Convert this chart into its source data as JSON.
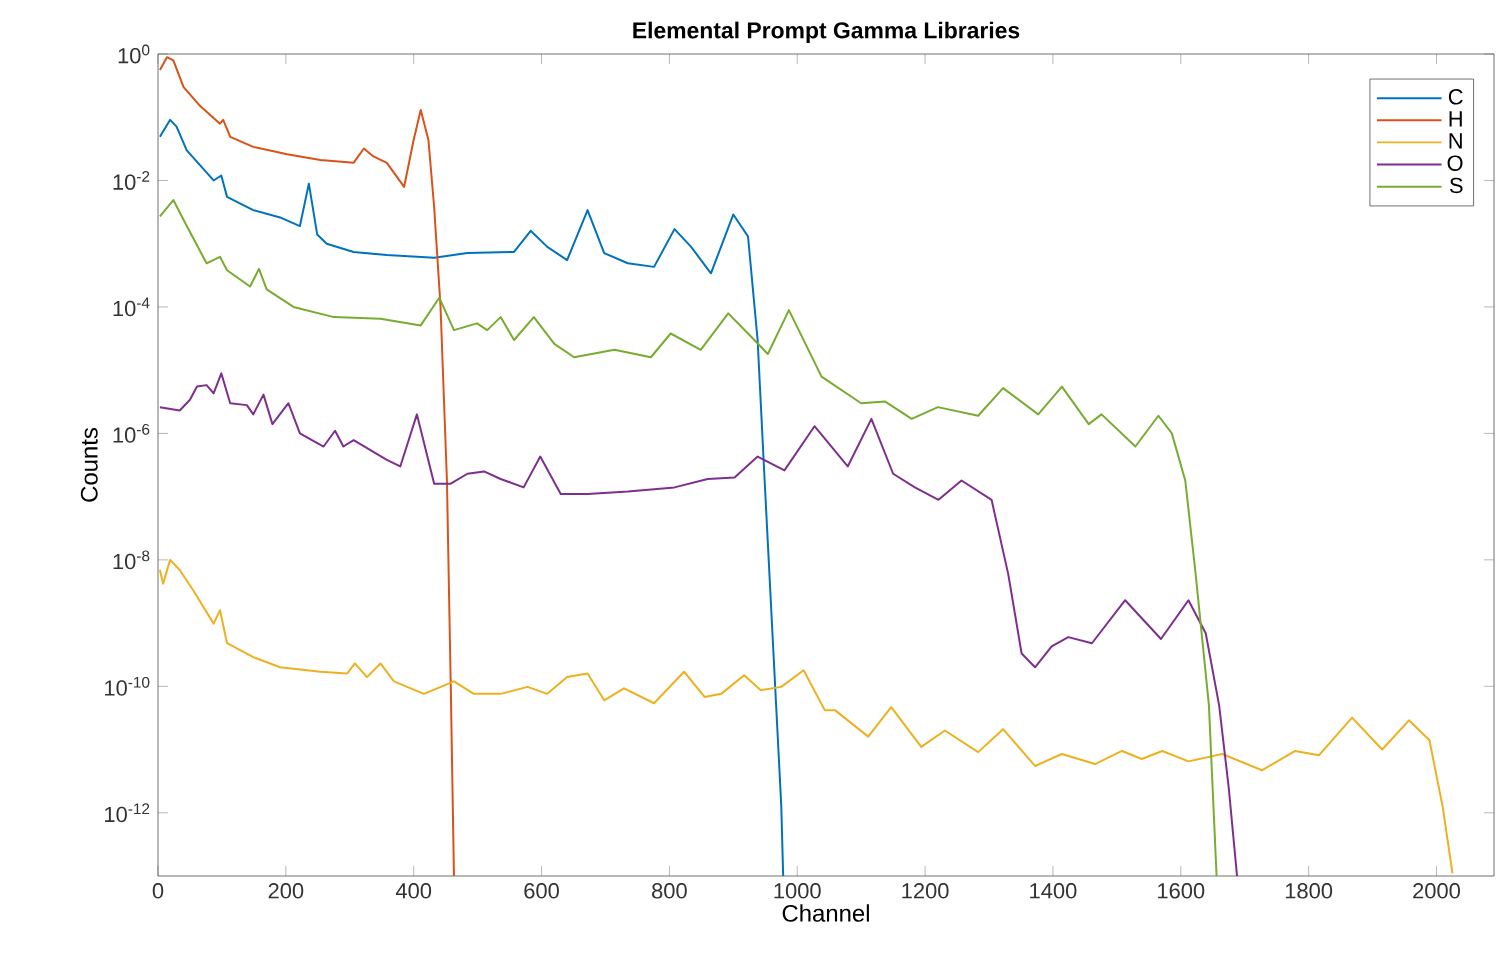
{
  "chart_data": {
    "type": "line",
    "title": "Elemental Prompt Gamma Libraries",
    "xlabel": "Channel",
    "ylabel": "Counts",
    "log": "y",
    "legend": "top right",
    "line_style": "solid",
    "xlim": [
      0,
      2090
    ],
    "ylim": [
      1e-13,
      1
    ],
    "xticks": [
      0,
      200,
      400,
      600,
      800,
      1000,
      1200,
      1400,
      1600,
      1800,
      2000
    ],
    "yticks": [
      {
        "value": 1e-12,
        "label": "10$^{-12}$"
      },
      {
        "value": 1e-10,
        "label": "10$^{-10}$"
      },
      {
        "value": 1e-08,
        "label": "10$^{-8}$"
      },
      {
        "value": 1e-06,
        "label": "10$^{-6}$"
      },
      {
        "value": 0.0001,
        "label": "10$^{-4}$"
      },
      {
        "value": 0.01,
        "label": "10$^{-2}$"
      },
      {
        "value": 1,
        "label": "10$^{0}$"
      }
    ],
    "series": [
      {
        "name": "C",
        "color": "#0072bd",
        "x": [
          3,
          19,
          29,
          45,
          87,
          99,
          108,
          149,
          191,
          222,
          236,
          249,
          264,
          306,
          358,
          432,
          484,
          557,
          583,
          609,
          640,
          672,
          698,
          735,
          776,
          808,
          834,
          865,
          900,
          923,
          938,
          949,
          975,
          978
        ],
        "values": [
          0.049,
          0.091,
          0.071,
          0.03,
          0.01,
          0.012,
          0.0055,
          0.0034,
          0.0026,
          0.0019,
          0.0089,
          0.0014,
          0.001,
          0.00074,
          0.00066,
          0.0006,
          0.00071,
          0.00074,
          0.0016,
          0.00089,
          0.00055,
          0.0034,
          0.00071,
          0.00049,
          0.00043,
          0.0017,
          0.00089,
          0.00034,
          0.0029,
          0.0013,
          3e-05,
          1.8e-07,
          1.3e-12,
          1e-13
        ]
      },
      {
        "name": "H",
        "color": "#d95319",
        "x": [
          3,
          14,
          24,
          40,
          66,
          97,
          102,
          113,
          149,
          202,
          254,
          306,
          322,
          337,
          358,
          385,
          400,
          411,
          423,
          432,
          442,
          452,
          458,
          463
        ],
        "values": [
          0.56,
          0.89,
          0.79,
          0.3,
          0.15,
          0.079,
          0.091,
          0.049,
          0.034,
          0.026,
          0.021,
          0.019,
          0.032,
          0.024,
          0.019,
          0.0079,
          0.044,
          0.13,
          0.044,
          0.0038,
          0.0001,
          1.8e-07,
          1e-10,
          1e-13
        ]
      },
      {
        "name": "N",
        "color": "#edb120",
        "x": [
          3,
          8,
          19,
          34,
          55,
          87,
          97,
          108,
          149,
          191,
          254,
          296,
          308,
          327,
          348,
          369,
          416,
          463,
          494,
          536,
          578,
          609,
          640,
          672,
          698,
          729,
          776,
          823,
          855,
          881,
          917,
          943,
          975,
          1010,
          1043,
          1059,
          1111,
          1147,
          1194,
          1231,
          1283,
          1322,
          1372,
          1414,
          1466,
          1508,
          1539,
          1571,
          1612,
          1665,
          1727,
          1779,
          1816,
          1868,
          1915,
          1957,
          1989,
          2010,
          2025
        ],
        "values": [
          6.9e-09,
          4.2e-09,
          1e-08,
          6.9e-09,
          3.3e-09,
          9.8e-10,
          1.6e-09,
          4.8e-10,
          2.9e-10,
          2e-10,
          1.7e-10,
          1.6e-10,
          2.3e-10,
          1.4e-10,
          2.3e-10,
          1.2e-10,
          7.6e-11,
          1.2e-10,
          7.6e-11,
          7.6e-11,
          9.8e-11,
          7.6e-11,
          1.4e-10,
          1.6e-10,
          6e-11,
          9.3e-11,
          5.4e-11,
          1.7e-10,
          6.8e-11,
          7.6e-11,
          1.5e-10,
          8.7e-11,
          9.8e-11,
          1.8e-10,
          4.2e-11,
          4.2e-11,
          1.6e-11,
          4.7e-11,
          1.1e-11,
          2e-11,
          9.1e-12,
          2.1e-11,
          5.5e-12,
          8.5e-12,
          5.9e-12,
          9.5e-12,
          7.1e-12,
          9.5e-12,
          6.5e-12,
          8.5e-12,
          4.7e-12,
          9.5e-12,
          8.1e-12,
          3.2e-11,
          1e-11,
          2.9e-11,
          1.4e-11,
          1.2e-12,
          1.1e-13
        ]
      },
      {
        "name": "O",
        "color": "#7e2f8e",
        "x": [
          3,
          34,
          50,
          61,
          76,
          87,
          99,
          113,
          139,
          149,
          165,
          179,
          204,
          222,
          259,
          277,
          290,
          306,
          358,
          379,
          405,
          432,
          458,
          484,
          510,
          536,
          572,
          598,
          630,
          672,
          735,
          808,
          860,
          902,
          938,
          980,
          1027,
          1079,
          1116,
          1150,
          1184,
          1221,
          1257,
          1304,
          1330,
          1351,
          1372,
          1398,
          1424,
          1461,
          1513,
          1569,
          1612,
          1639,
          1660,
          1675,
          1688
        ],
        "values": [
          2.6e-06,
          2.3e-06,
          3.4e-06,
          5.5e-06,
          5.8e-06,
          4.3e-06,
          8.9e-06,
          3e-06,
          2.8e-06,
          2e-06,
          4.1e-06,
          1.4e-06,
          3e-06,
          1e-06,
          6.2e-07,
          1.1e-06,
          6.2e-07,
          7.8e-07,
          3.8e-07,
          3e-07,
          2e-06,
          1.6e-07,
          1.6e-07,
          2.3e-07,
          2.5e-07,
          1.9e-07,
          1.4e-07,
          4.3e-07,
          1.1e-07,
          1.1e-07,
          1.2e-07,
          1.4e-07,
          1.9e-07,
          2e-07,
          4.3e-07,
          2.6e-07,
          1.3e-06,
          3e-07,
          1.7e-06,
          2.3e-07,
          1.4e-07,
          8.9e-08,
          1.8e-07,
          8.9e-08,
          6e-09,
          3.3e-10,
          2e-10,
          4.3e-10,
          6e-10,
          4.8e-10,
          2.3e-09,
          5.6e-10,
          2.3e-09,
          6.9e-10,
          5e-11,
          2.5e-12,
          1e-13
        ]
      },
      {
        "name": "S",
        "color": "#77ac30",
        "x": [
          3,
          24,
          45,
          76,
          97,
          108,
          144,
          158,
          170,
          212,
          275,
          348,
          411,
          440,
          463,
          499,
          515,
          536,
          557,
          588,
          620,
          651,
          714,
          771,
          802,
          849,
          892,
          923,
          954,
          987,
          1038,
          1100,
          1137,
          1179,
          1220,
          1283,
          1322,
          1377,
          1414,
          1456,
          1476,
          1529,
          1565,
          1586,
          1607,
          1623,
          1644,
          1656
        ],
        "values": [
          0.0027,
          0.0049,
          0.0019,
          0.00049,
          0.00062,
          0.00038,
          0.00021,
          0.0004,
          0.00019,
          0.0001,
          6.9e-05,
          6.5e-05,
          5.1e-05,
          0.00014,
          4.3e-05,
          5.5e-05,
          4.3e-05,
          6.9e-05,
          3e-05,
          6.9e-05,
          2.6e-05,
          1.6e-05,
          2.1e-05,
          1.6e-05,
          3.8e-05,
          2.1e-05,
          7.9e-05,
          3.8e-05,
          1.8e-05,
          8.9e-05,
          7.9e-06,
          3e-06,
          3.2e-06,
          1.7e-06,
          2.6e-06,
          1.9e-06,
          5.2e-06,
          2e-06,
          5.5e-06,
          1.4e-06,
          2e-06,
          6.2e-07,
          1.9e-06,
          1e-06,
          1.8e-07,
          6.3e-09,
          5e-11,
          1e-13
        ]
      }
    ]
  }
}
